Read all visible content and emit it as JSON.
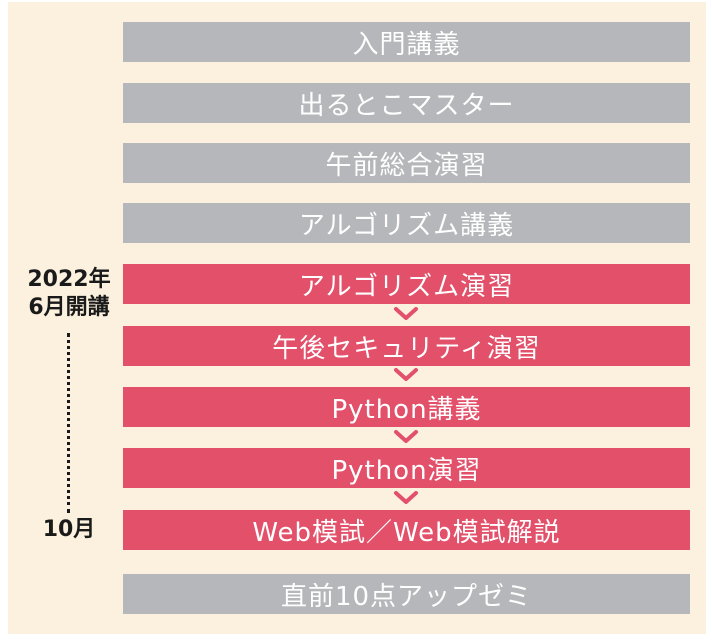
{
  "colors": {
    "background": "#fbf1de",
    "gray_bar": "#b6b7ba",
    "pink_bar": "#e2506a",
    "arrow": "#e2506a"
  },
  "start_label": {
    "year": "2022年",
    "text": "6月開講"
  },
  "end_label": "10月",
  "courses": [
    {
      "label": "入門講義",
      "style": "gray"
    },
    {
      "label": "出るとこマスター",
      "style": "gray"
    },
    {
      "label": "午前総合演習",
      "style": "gray"
    },
    {
      "label": "アルゴリズム講義",
      "style": "gray"
    },
    {
      "label": "アルゴリズム演習",
      "style": "pink"
    },
    {
      "label": "午後セキュリティ演習",
      "style": "pink"
    },
    {
      "label": "Python講義",
      "style": "pink"
    },
    {
      "label": "Python演習",
      "style": "pink"
    },
    {
      "label": "Web模試／Web模試解説",
      "style": "pink"
    },
    {
      "label": "直前10点アップゼミ",
      "style": "gray"
    }
  ]
}
